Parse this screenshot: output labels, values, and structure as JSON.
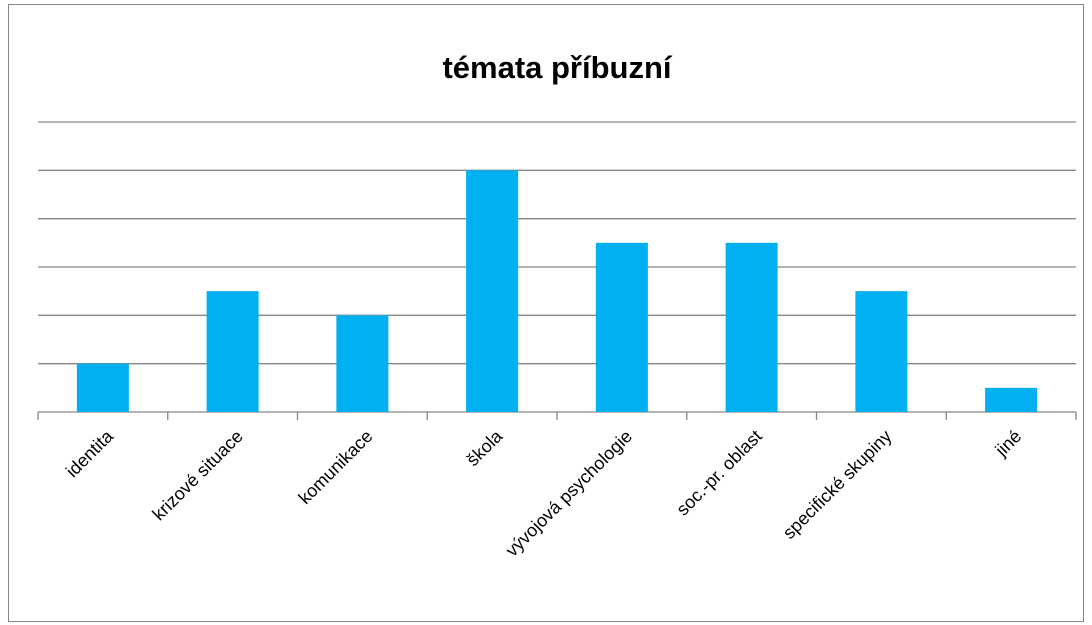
{
  "chart_data": {
    "type": "bar",
    "title": "témata příbuzní",
    "categories": [
      "identita",
      "krizové situace",
      "komunikace",
      "škola",
      "vývojová psychologie",
      "soc.-pr. oblast",
      "specifické skupiny",
      "jiné"
    ],
    "values": [
      1,
      2.5,
      2,
      5,
      3.5,
      3.5,
      2.5,
      0.5
    ],
    "color": "#00b0f0",
    "ylim": [
      0,
      6
    ],
    "yticks": [
      0,
      1,
      2,
      3,
      4,
      5,
      6
    ],
    "grid": true
  }
}
